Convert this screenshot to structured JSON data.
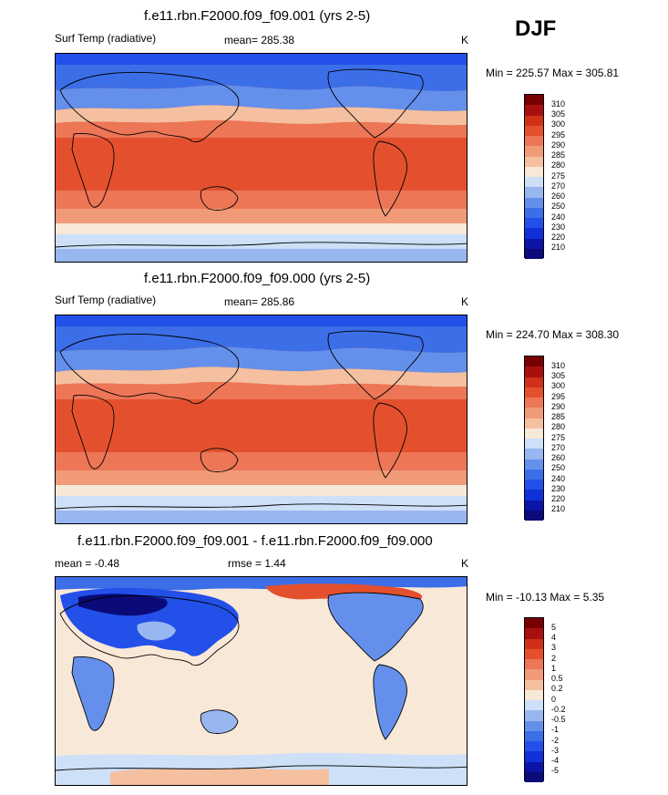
{
  "season": "DJF",
  "panels": [
    {
      "title": "f.e11.rbn.F2000.f09_f09.001 (yrs 2-5)",
      "left_label": "Surf Temp (radiative)",
      "center_label": "mean= 285.38",
      "units": "K",
      "minmax": "Min = 225.57 Max = 305.81"
    },
    {
      "title": "f.e11.rbn.F2000.f09_f09.000 (yrs 2-5)",
      "left_label": "Surf Temp (radiative)",
      "center_label": "mean= 285.86",
      "units": "K",
      "minmax": "Min = 224.70 Max = 308.30"
    },
    {
      "title": "f.e11.rbn.F2000.f09_f09.001 - f.e11.rbn.F2000.f09_f09.000",
      "left_label": "mean =  -0.48",
      "center_label": "rmse =   1.44",
      "units": "K",
      "minmax": "Min = -10.13 Max =   5.35"
    }
  ],
  "chart_data": [
    {
      "type": "heatmap",
      "title": "f.e11.rbn.F2000.f09_f09.001 (yrs 2-5)",
      "variable": "Surf Temp (radiative)",
      "units": "K",
      "mean": 285.38,
      "min": 225.57,
      "max": 305.81,
      "levels": [
        210,
        220,
        230,
        240,
        250,
        260,
        270,
        275,
        280,
        285,
        290,
        295,
        300,
        305,
        310
      ],
      "colors": [
        "#0a0a78",
        "#0c14a8",
        "#1030d8",
        "#2250e8",
        "#3c6ee8",
        "#6490ec",
        "#98b6f0",
        "#cde0f8",
        "#f8e8d8",
        "#f4c0a0",
        "#f09a78",
        "#ec7656",
        "#e4502e",
        "#d03018",
        "#a81010",
        "#780000"
      ]
    },
    {
      "type": "heatmap",
      "title": "f.e11.rbn.F2000.f09_f09.000 (yrs 2-5)",
      "variable": "Surf Temp (radiative)",
      "units": "K",
      "mean": 285.86,
      "min": 224.7,
      "max": 308.3,
      "levels": [
        210,
        220,
        230,
        240,
        250,
        260,
        270,
        275,
        280,
        285,
        290,
        295,
        300,
        305,
        310
      ],
      "colors": [
        "#0a0a78",
        "#0c14a8",
        "#1030d8",
        "#2250e8",
        "#3c6ee8",
        "#6490ec",
        "#98b6f0",
        "#cde0f8",
        "#f8e8d8",
        "#f4c0a0",
        "#f09a78",
        "#ec7656",
        "#e4502e",
        "#d03018",
        "#a81010",
        "#780000"
      ]
    },
    {
      "type": "heatmap",
      "title": "f.e11.rbn.F2000.f09_f09.001 - f.e11.rbn.F2000.f09_f09.000",
      "units": "K",
      "mean": -0.48,
      "rmse": 1.44,
      "min": -10.13,
      "max": 5.35,
      "levels": [
        -5,
        -4,
        -3,
        -2,
        -1,
        -0.5,
        -0.2,
        0,
        0.2,
        0.5,
        1,
        2,
        3,
        4,
        5
      ],
      "colors": [
        "#0a0a78",
        "#0c14a8",
        "#1030d8",
        "#2250e8",
        "#3c6ee8",
        "#6490ec",
        "#98b6f0",
        "#cde0f8",
        "#f8e8d8",
        "#f4c0a0",
        "#f09a78",
        "#ec7656",
        "#e4502e",
        "#d03018",
        "#a81010",
        "#780000"
      ]
    }
  ]
}
